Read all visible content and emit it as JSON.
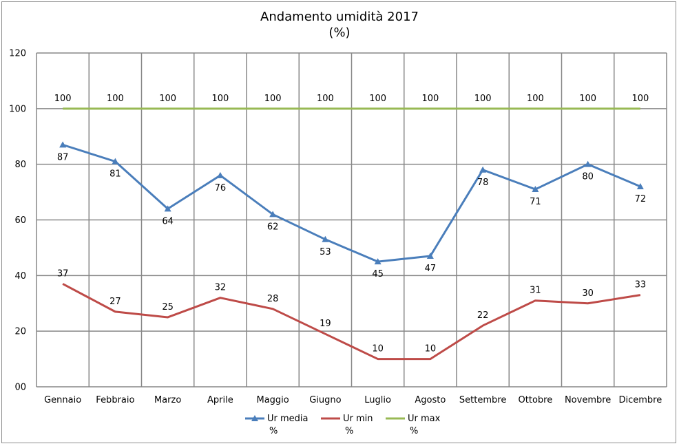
{
  "chart_data": {
    "type": "line",
    "title": "Andamento umidità 2017",
    "subtitle": "(%)",
    "categories": [
      "Gennaio",
      "Febbraio",
      "Marzo",
      "Aprile",
      "Maggio",
      "Giugno",
      "Luglio",
      "Agosto",
      "Settembre",
      "Ottobre",
      "Novembre",
      "Dicembre"
    ],
    "ylim": [
      0,
      120
    ],
    "yticks": [
      "00",
      "20",
      "40",
      "60",
      "80",
      "100",
      "120"
    ],
    "grid": true,
    "legend_position": "bottom",
    "series": [
      {
        "name_line1": "Ur media",
        "name_line2": "%",
        "color": "#4a7ebb",
        "marker": "triangle",
        "values": [
          87,
          81,
          64,
          76,
          62,
          53,
          45,
          47,
          78,
          71,
          80,
          72
        ]
      },
      {
        "name_line1": "Ur min",
        "name_line2": "%",
        "color": "#be4b48",
        "marker": "none",
        "values": [
          37,
          27,
          25,
          32,
          28,
          19,
          10,
          10,
          22,
          31,
          30,
          33
        ]
      },
      {
        "name_line1": "Ur max",
        "name_line2": "%",
        "color": "#98b954",
        "marker": "none",
        "values": [
          100,
          100,
          100,
          100,
          100,
          100,
          100,
          100,
          100,
          100,
          100,
          100
        ]
      }
    ]
  }
}
